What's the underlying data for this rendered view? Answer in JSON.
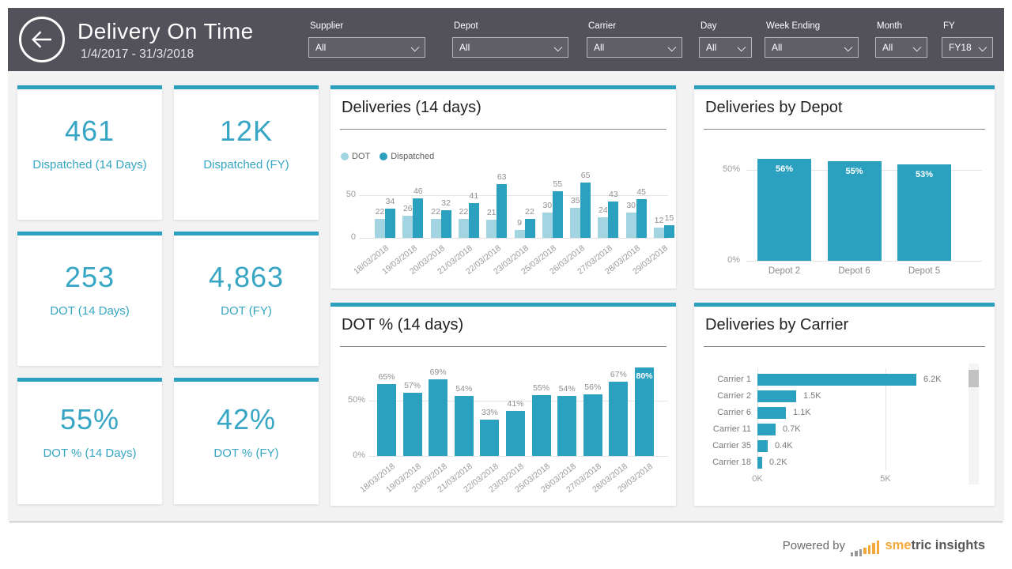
{
  "header": {
    "title": "Delivery On Time",
    "date_range": "1/4/2017 - 31/3/2018",
    "filters": [
      {
        "label": "Supplier",
        "value": "All"
      },
      {
        "label": "Depot",
        "value": "All"
      },
      {
        "label": "Carrier",
        "value": "All"
      },
      {
        "label": "Day",
        "value": "All"
      },
      {
        "label": "Week Ending",
        "value": "All"
      },
      {
        "label": "Month",
        "value": "All"
      },
      {
        "label": "FY",
        "value": "FY18"
      }
    ]
  },
  "kpis": [
    {
      "value": "461",
      "label": "Dispatched (14 Days)"
    },
    {
      "value": "12K",
      "label": "Dispatched (FY)"
    },
    {
      "value": "253",
      "label": "DOT (14 Days)"
    },
    {
      "value": "4,863",
      "label": "DOT (FY)"
    },
    {
      "value": "55%",
      "label": "DOT % (14 Days)"
    },
    {
      "value": "42%",
      "label": "DOT % (FY)"
    }
  ],
  "chart_data": [
    {
      "type": "bar",
      "variant": "grouped-vertical",
      "title": "Deliveries (14 days)",
      "legend_position": "top-left",
      "categories": [
        "18/03/2018",
        "19/03/2018",
        "20/03/2018",
        "21/03/2018",
        "22/03/2018",
        "23/03/2018",
        "25/03/2018",
        "26/03/2018",
        "27/03/2018",
        "28/03/2018",
        "29/03/2018"
      ],
      "series": [
        {
          "name": "DOT",
          "color": "#A3D4E1",
          "values": [
            22,
            26,
            22,
            22,
            21,
            9,
            30,
            35,
            24,
            30,
            12
          ]
        },
        {
          "name": "Dispatched",
          "color": "#2CA1BF",
          "values": [
            34,
            46,
            32,
            41,
            63,
            22,
            55,
            65,
            43,
            45,
            15
          ]
        }
      ],
      "y_ticks": [
        "50",
        "0"
      ],
      "ylim": [
        0,
        70
      ],
      "grid": true
    },
    {
      "type": "bar",
      "variant": "vertical",
      "title": "DOT % (14 days)",
      "categories": [
        "18/03/2018",
        "19/03/2018",
        "20/03/2018",
        "21/03/2018",
        "22/03/2018",
        "23/03/2018",
        "25/03/2018",
        "26/03/2018",
        "27/03/2018",
        "28/03/2018",
        "29/03/2018"
      ],
      "values": [
        65,
        57,
        69,
        54,
        33,
        41,
        55,
        54,
        56,
        67,
        80
      ],
      "labels": [
        "65%",
        "57%",
        "69%",
        "54%",
        "33%",
        "41%",
        "55%",
        "54%",
        "56%",
        "67%",
        "80%"
      ],
      "inside_label_index": 10,
      "color": "#2CA1BF",
      "y_ticks": [
        "50%",
        "0%"
      ],
      "ylim": [
        0,
        88
      ],
      "grid": true
    },
    {
      "type": "bar",
      "variant": "vertical",
      "title": "Deliveries by Depot",
      "categories": [
        "Depot 2",
        "Depot 6",
        "Depot 5"
      ],
      "values": [
        56,
        55,
        53
      ],
      "labels": [
        "56%",
        "55%",
        "53%"
      ],
      "labels_inside": true,
      "color": "#2CA1BF",
      "y_ticks": [
        "50%",
        "0%"
      ],
      "ylim": [
        0,
        62
      ],
      "grid": true
    },
    {
      "type": "bar",
      "variant": "horizontal",
      "title": "Deliveries by Carrier",
      "categories": [
        "Carrier 1",
        "Carrier 2",
        "Carrier 6",
        "Carrier 11",
        "Carrier 35",
        "Carrier 18"
      ],
      "values": [
        6200,
        1500,
        1100,
        700,
        400,
        200
      ],
      "labels": [
        "6.2K",
        "1.5K",
        "1.1K",
        "0.7K",
        "0.4K",
        "0.2K"
      ],
      "color": "#2CA1BF",
      "x_ticks": [
        "0K",
        "5K"
      ],
      "xlim": [
        0,
        6900
      ],
      "scrollbar": true,
      "grid": true
    }
  ],
  "colors": {
    "accent": "#2CA1BF",
    "accent_light": "#A3D4E1",
    "header_bg": "#53525B",
    "kpi_text": "#36A6C4",
    "brand_orange": "#F5A83B"
  },
  "footer": {
    "powered_by": "Powered by",
    "brand_highlight": "sme",
    "brand_rest": "tric insights"
  }
}
